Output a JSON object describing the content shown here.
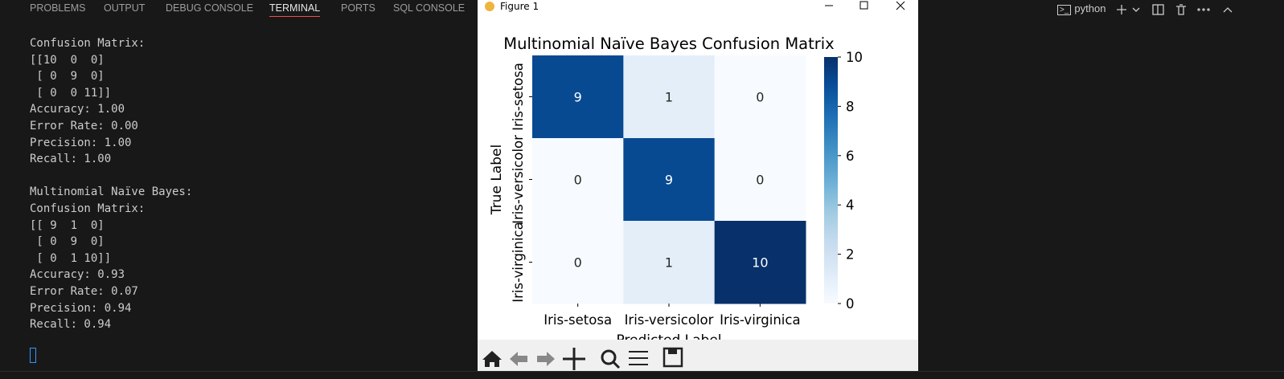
{
  "panel_tabs": [
    "PROBLEMS",
    "OUTPUT",
    "DEBUG CONSOLE",
    "TERMINAL",
    "PORTS",
    "SQL CONSOLE"
  ],
  "active_tab": 3,
  "terminal_profile": "python",
  "terminal": {
    "blocks": [
      [
        "Confusion Matrix:",
        "[[10  0  0]",
        " [ 0  9  0]",
        " [ 0  0 11]]",
        "Accuracy: 1.00",
        "Error Rate: 0.00",
        "Precision: 1.00",
        "Recall: 1.00"
      ],
      [
        "Multinomial Naïve Bayes:",
        "Confusion Matrix:",
        "[[ 9  1  0]",
        " [ 0  9  0]",
        " [ 0  1 10]]",
        "Accuracy: 0.93",
        "Error Rate: 0.07",
        "Precision: 0.94",
        "Recall: 0.94"
      ]
    ]
  },
  "window_title": "Figure 1",
  "chart_data": {
    "type": "heatmap",
    "title": "Multinomial Naïve Bayes Confusion Matrix",
    "x_label": "Predicted Label",
    "y_label": "True Label",
    "categories": [
      "Iris-setosa",
      "Iris-versicolor",
      "Iris-virginica"
    ],
    "values": [
      [
        9,
        1,
        0
      ],
      [
        0,
        9,
        0
      ],
      [
        0,
        1,
        10
      ]
    ],
    "colormap": [
      "#f7fbff",
      "#deebf7",
      "#c6dbef",
      "#9ecae1",
      "#6baed6",
      "#4292c6",
      "#2171b5",
      "#08519c",
      "#08306b"
    ],
    "zlim": [
      0,
      10
    ],
    "zticks": [
      0,
      2,
      4,
      6,
      8,
      10
    ]
  }
}
